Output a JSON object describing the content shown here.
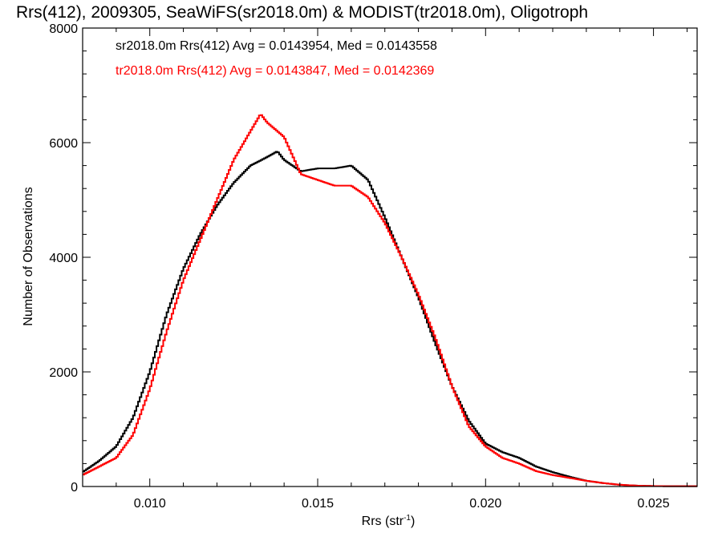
{
  "chart_data": {
    "type": "line",
    "title": "Rrs(412), 2009305, SeaWiFS(sr2018.0m) & MODIST(tr2018.0m), Oligotroph",
    "xlabel": "Rrs (str",
    "xlabel_sup": "-1",
    "xlabel_close": ")",
    "ylabel": "Number of Observations",
    "xlim": [
      0.008,
      0.0263
    ],
    "ylim": [
      0,
      8000
    ],
    "x_ticks": [
      {
        "value": 0.01,
        "label": "0.010"
      },
      {
        "value": 0.015,
        "label": "0.015"
      },
      {
        "value": 0.02,
        "label": "0.020"
      },
      {
        "value": 0.025,
        "label": "0.025"
      }
    ],
    "y_ticks": [
      {
        "value": 0,
        "label": "0"
      },
      {
        "value": 2000,
        "label": "2000"
      },
      {
        "value": 4000,
        "label": "4000"
      },
      {
        "value": 6000,
        "label": "6000"
      },
      {
        "value": 8000,
        "label": "8000"
      }
    ],
    "grid": false,
    "legend_position": "top-left",
    "series": [
      {
        "name": "sr2018.0m Rrs(412) Avg = 0.0143954, Med = 0.0143558",
        "color": "#000000",
        "step": true,
        "x": [
          0.008,
          0.0085,
          0.009,
          0.0095,
          0.01,
          0.0105,
          0.011,
          0.0115,
          0.012,
          0.0125,
          0.013,
          0.0135,
          0.0138,
          0.014,
          0.0145,
          0.015,
          0.0155,
          0.016,
          0.0165,
          0.017,
          0.0175,
          0.018,
          0.0185,
          0.019,
          0.0195,
          0.02,
          0.0205,
          0.021,
          0.0215,
          0.022,
          0.0225,
          0.023,
          0.0235,
          0.024,
          0.0245,
          0.025,
          0.0255,
          0.0263
        ],
        "y": [
          250,
          450,
          700,
          1200,
          2000,
          3000,
          3800,
          4400,
          4900,
          5300,
          5600,
          5750,
          5850,
          5700,
          5500,
          5550,
          5550,
          5600,
          5350,
          4700,
          4000,
          3300,
          2500,
          1750,
          1150,
          750,
          600,
          500,
          350,
          250,
          170,
          100,
          60,
          30,
          15,
          8,
          5,
          5
        ]
      },
      {
        "name": "tr2018.0m Rrs(412) Avg = 0.0143847, Med = 0.0142369",
        "color": "#ff0000",
        "step": true,
        "x": [
          0.008,
          0.0085,
          0.009,
          0.0095,
          0.01,
          0.0105,
          0.011,
          0.0115,
          0.012,
          0.0125,
          0.013,
          0.0133,
          0.0135,
          0.014,
          0.0145,
          0.015,
          0.0155,
          0.016,
          0.0165,
          0.017,
          0.0175,
          0.018,
          0.0185,
          0.019,
          0.0195,
          0.02,
          0.0205,
          0.021,
          0.0215,
          0.022,
          0.0225,
          0.023,
          0.0235,
          0.024,
          0.0245,
          0.025,
          0.0255,
          0.0263
        ],
        "y": [
          200,
          350,
          500,
          900,
          1700,
          2700,
          3600,
          4300,
          5000,
          5700,
          6200,
          6500,
          6350,
          6100,
          5450,
          5350,
          5250,
          5250,
          5050,
          4600,
          4000,
          3350,
          2600,
          1750,
          1050,
          700,
          500,
          400,
          270,
          200,
          150,
          100,
          60,
          30,
          15,
          8,
          5,
          5
        ]
      }
    ]
  }
}
